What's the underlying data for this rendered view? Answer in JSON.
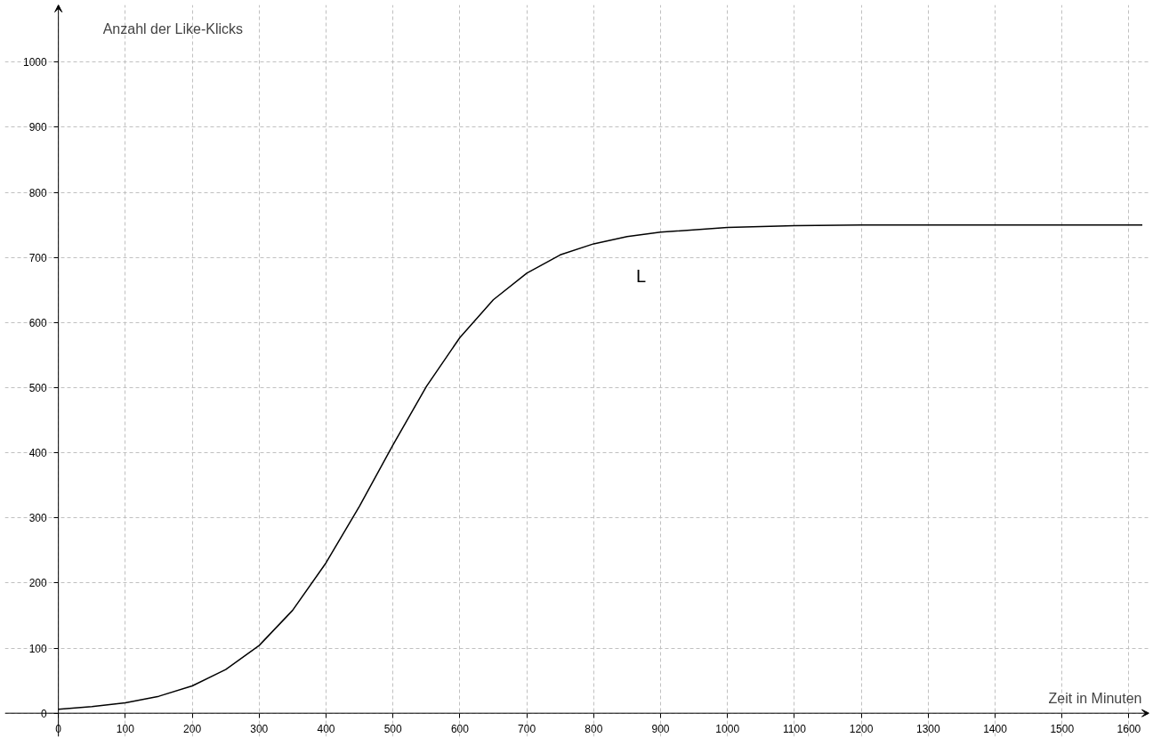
{
  "chart_data": {
    "type": "line",
    "xlabel": "Zeit in Minuten",
    "ylabel": "Anzahl der Like-Klicks",
    "xlim": [
      -80,
      1630
    ],
    "ylim": [
      -36,
      1088
    ],
    "xticks": [
      0,
      100,
      200,
      300,
      400,
      500,
      600,
      700,
      800,
      900,
      1000,
      1100,
      1200,
      1300,
      1400,
      1500,
      1600
    ],
    "yticks": [
      0,
      100,
      200,
      300,
      400,
      500,
      600,
      700,
      800,
      900,
      1000
    ],
    "grid": true,
    "line_style": "solid",
    "marker": "none",
    "series": [
      {
        "name": "L",
        "color": "#000000",
        "x": [
          0,
          50,
          100,
          150,
          200,
          250,
          300,
          350,
          400,
          450,
          500,
          550,
          600,
          650,
          700,
          750,
          800,
          850,
          900,
          1000,
          1100,
          1200,
          1400,
          1620
        ],
        "values": [
          6,
          10,
          16,
          26,
          42,
          67,
          104,
          158,
          231,
          318,
          412,
          502,
          577,
          635,
          676,
          704,
          721,
          732,
          739,
          746,
          749,
          750,
          750,
          750
        ]
      }
    ]
  }
}
